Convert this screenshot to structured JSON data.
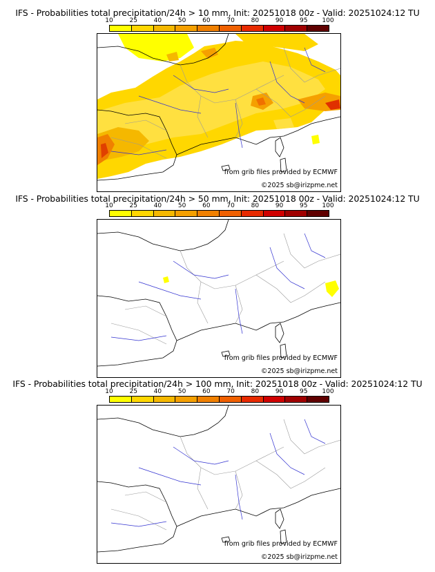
{
  "panels": [
    {
      "title": "IFS - Probabilities total precipitation/24h > 10 mm, Init: 20251018 00z - Valid: 20251024:12 TU",
      "threshold": "10 mm",
      "coverage": "extensive"
    },
    {
      "title": "IFS - Probabilities total precipitation/24h > 50 mm, Init: 20251018 00z - Valid: 20251024:12 TU",
      "threshold": "50 mm",
      "coverage": "small"
    },
    {
      "title": "IFS - Probabilities total precipitation/24h > 100 mm, Init: 20251018 00z - Valid: 20251024:12 TU",
      "threshold": "100 mm",
      "coverage": "none"
    }
  ],
  "colorbar": {
    "ticks": [
      "10",
      "25",
      "40",
      "50",
      "60",
      "70",
      "80",
      "90",
      "95",
      "100"
    ],
    "colors": [
      "#ffff00",
      "#ffd700",
      "#f5b800",
      "#f5a000",
      "#f08000",
      "#f06000",
      "#e82a00",
      "#d00000",
      "#a00000",
      "#600000"
    ]
  },
  "credits": {
    "source": "from grib files provided by ECMWF",
    "copyright": "©2025 sb@irizpme.net"
  }
}
